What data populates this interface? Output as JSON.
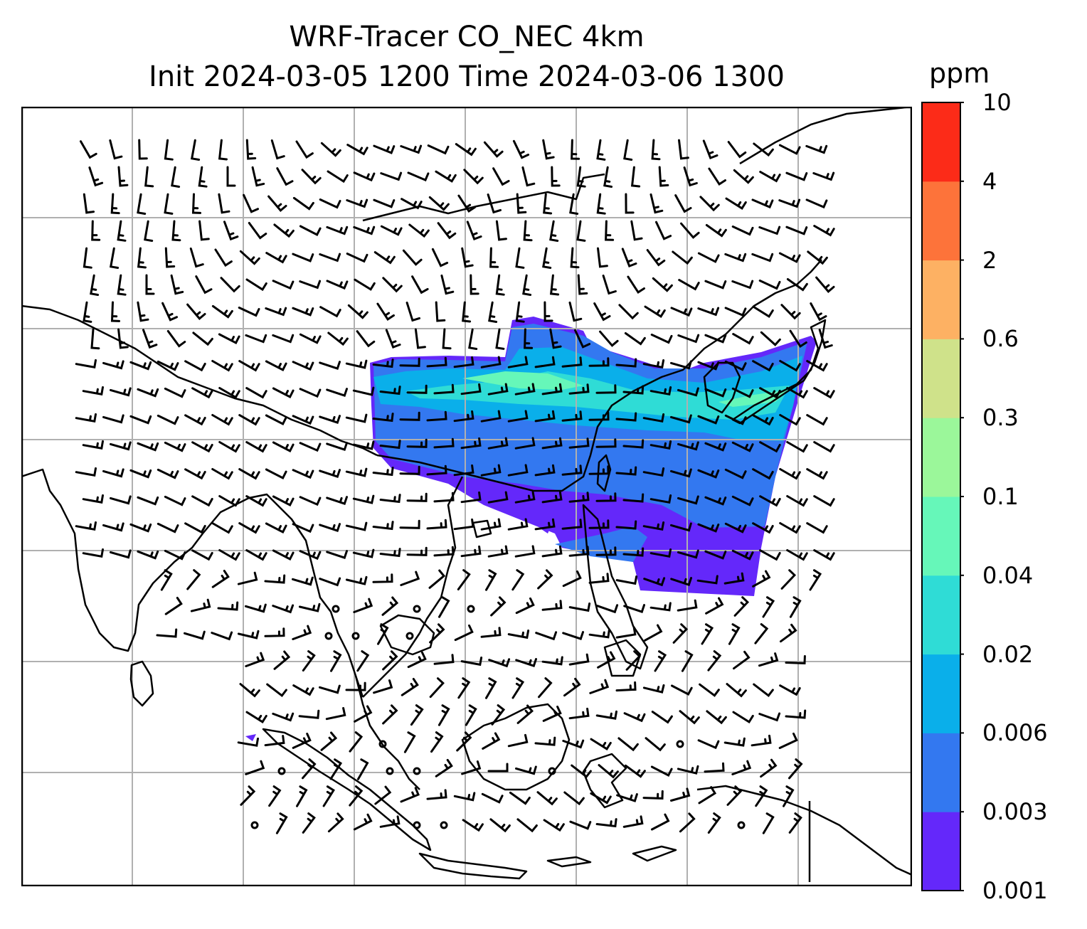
{
  "title_line1": "WRF-Tracer CO_NEC 4km",
  "title_line2": "Init 2024-03-05 1200 Time 2024-03-06 1300",
  "colorbar": {
    "unit": "ppm",
    "ticks": [
      "0.001",
      "0.003",
      "0.006",
      "0.02",
      "0.04",
      "0.1",
      "0.3",
      "0.6",
      "2",
      "4",
      "10"
    ],
    "colors": [
      "#6428fa",
      "#3378f0",
      "#0aafea",
      "#2fdcd6",
      "#66f7b9",
      "#9bf79a",
      "#cfe28a",
      "#fdb163",
      "#fd733a",
      "#fc2b18"
    ]
  },
  "map": {
    "gridlines": true,
    "features": [
      "coastlines",
      "country-borders",
      "wind-barbs",
      "tracer-plume"
    ],
    "plume_colors": {
      "lowest": "#6428fa",
      "low": "#3378f0",
      "mid": "#0aafea",
      "mid_high": "#2fdcd6",
      "high": "#66f7b9"
    }
  }
}
